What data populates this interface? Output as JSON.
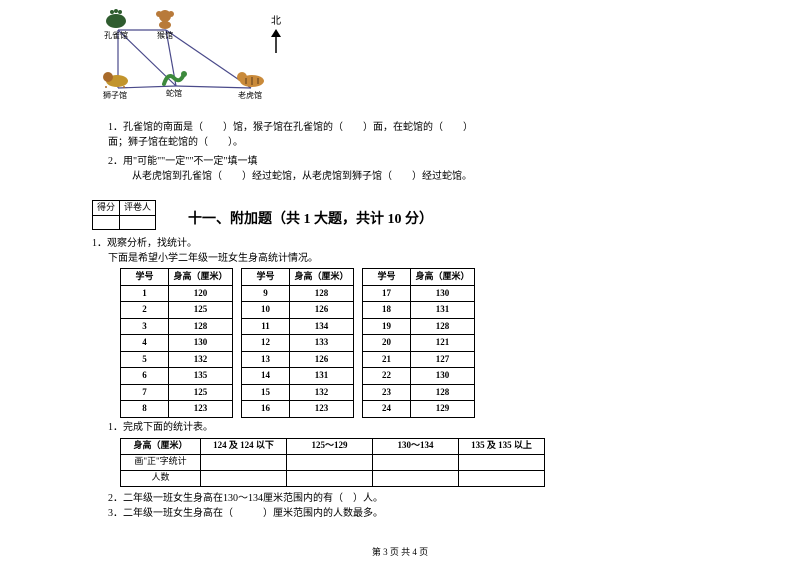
{
  "diagram": {
    "nodes": {
      "peacock": "孔雀馆",
      "monkey": "猴馆",
      "lion": "狮子馆",
      "snake": "蛇馆",
      "tiger": "老虎馆"
    },
    "north_label": "北",
    "colors": {
      "peacock": "#2f5c2f",
      "monkey": "#b87a3a",
      "lion": "#c2942c",
      "snake": "#3d8a3d",
      "tiger": "#a86a2a",
      "line": "#4a4a8a"
    }
  },
  "q1": {
    "n": "1．",
    "t1": "孔雀馆的南面是（　　）馆，猴子馆在孔雀馆的（　　）面，在蛇馆的（　　）",
    "t2": "面；狮子馆在蛇馆的（　　）。"
  },
  "q2": {
    "n": "2．",
    "t1": "用\"可能\"\"一定\"\"不一定\"填一填",
    "t2": "从老虎馆到孔雀馆（　　）经过蛇馆，从老虎馆到狮子馆（　　）经过蛇馆。"
  },
  "score": {
    "left": "得分",
    "right": "评卷人"
  },
  "section": "十一、附加题（共 1 大题，共计 10 分）",
  "problem": {
    "n": "1．",
    "title": "观察分析，找统计。",
    "desc": "下面是希望小学二年级一班女生身高统计情况。"
  },
  "height_table": {
    "headers": {
      "id": "学号",
      "h": "身高（厘米）"
    },
    "cols": [
      [
        [
          1,
          120
        ],
        [
          2,
          125
        ],
        [
          3,
          128
        ],
        [
          4,
          130
        ],
        [
          5,
          132
        ],
        [
          6,
          135
        ],
        [
          7,
          125
        ],
        [
          8,
          123
        ]
      ],
      [
        [
          9,
          128
        ],
        [
          10,
          126
        ],
        [
          11,
          134
        ],
        [
          12,
          133
        ],
        [
          13,
          126
        ],
        [
          14,
          131
        ],
        [
          15,
          132
        ],
        [
          16,
          123
        ]
      ],
      [
        [
          17,
          130
        ],
        [
          18,
          131
        ],
        [
          19,
          128
        ],
        [
          20,
          121
        ],
        [
          21,
          127
        ],
        [
          22,
          130
        ],
        [
          23,
          128
        ],
        [
          24,
          129
        ]
      ]
    ]
  },
  "sub1": "1．完成下面的统计表。",
  "stat_table": {
    "r0c0": "身高（厘米）",
    "ranges": [
      "124 及 124 以下",
      "125～129",
      "130～134",
      "135 及 135 以上"
    ],
    "r1c0": "画\"正\"字统计",
    "r2c0": "人数"
  },
  "sub2": "2．二年级一班女生身高在130～134厘米范围内的有（　）人。",
  "sub3": "3．二年级一班女生身高在（　　　）厘米范围内的人数最多。",
  "footer": "第 3 页  共 4 页"
}
